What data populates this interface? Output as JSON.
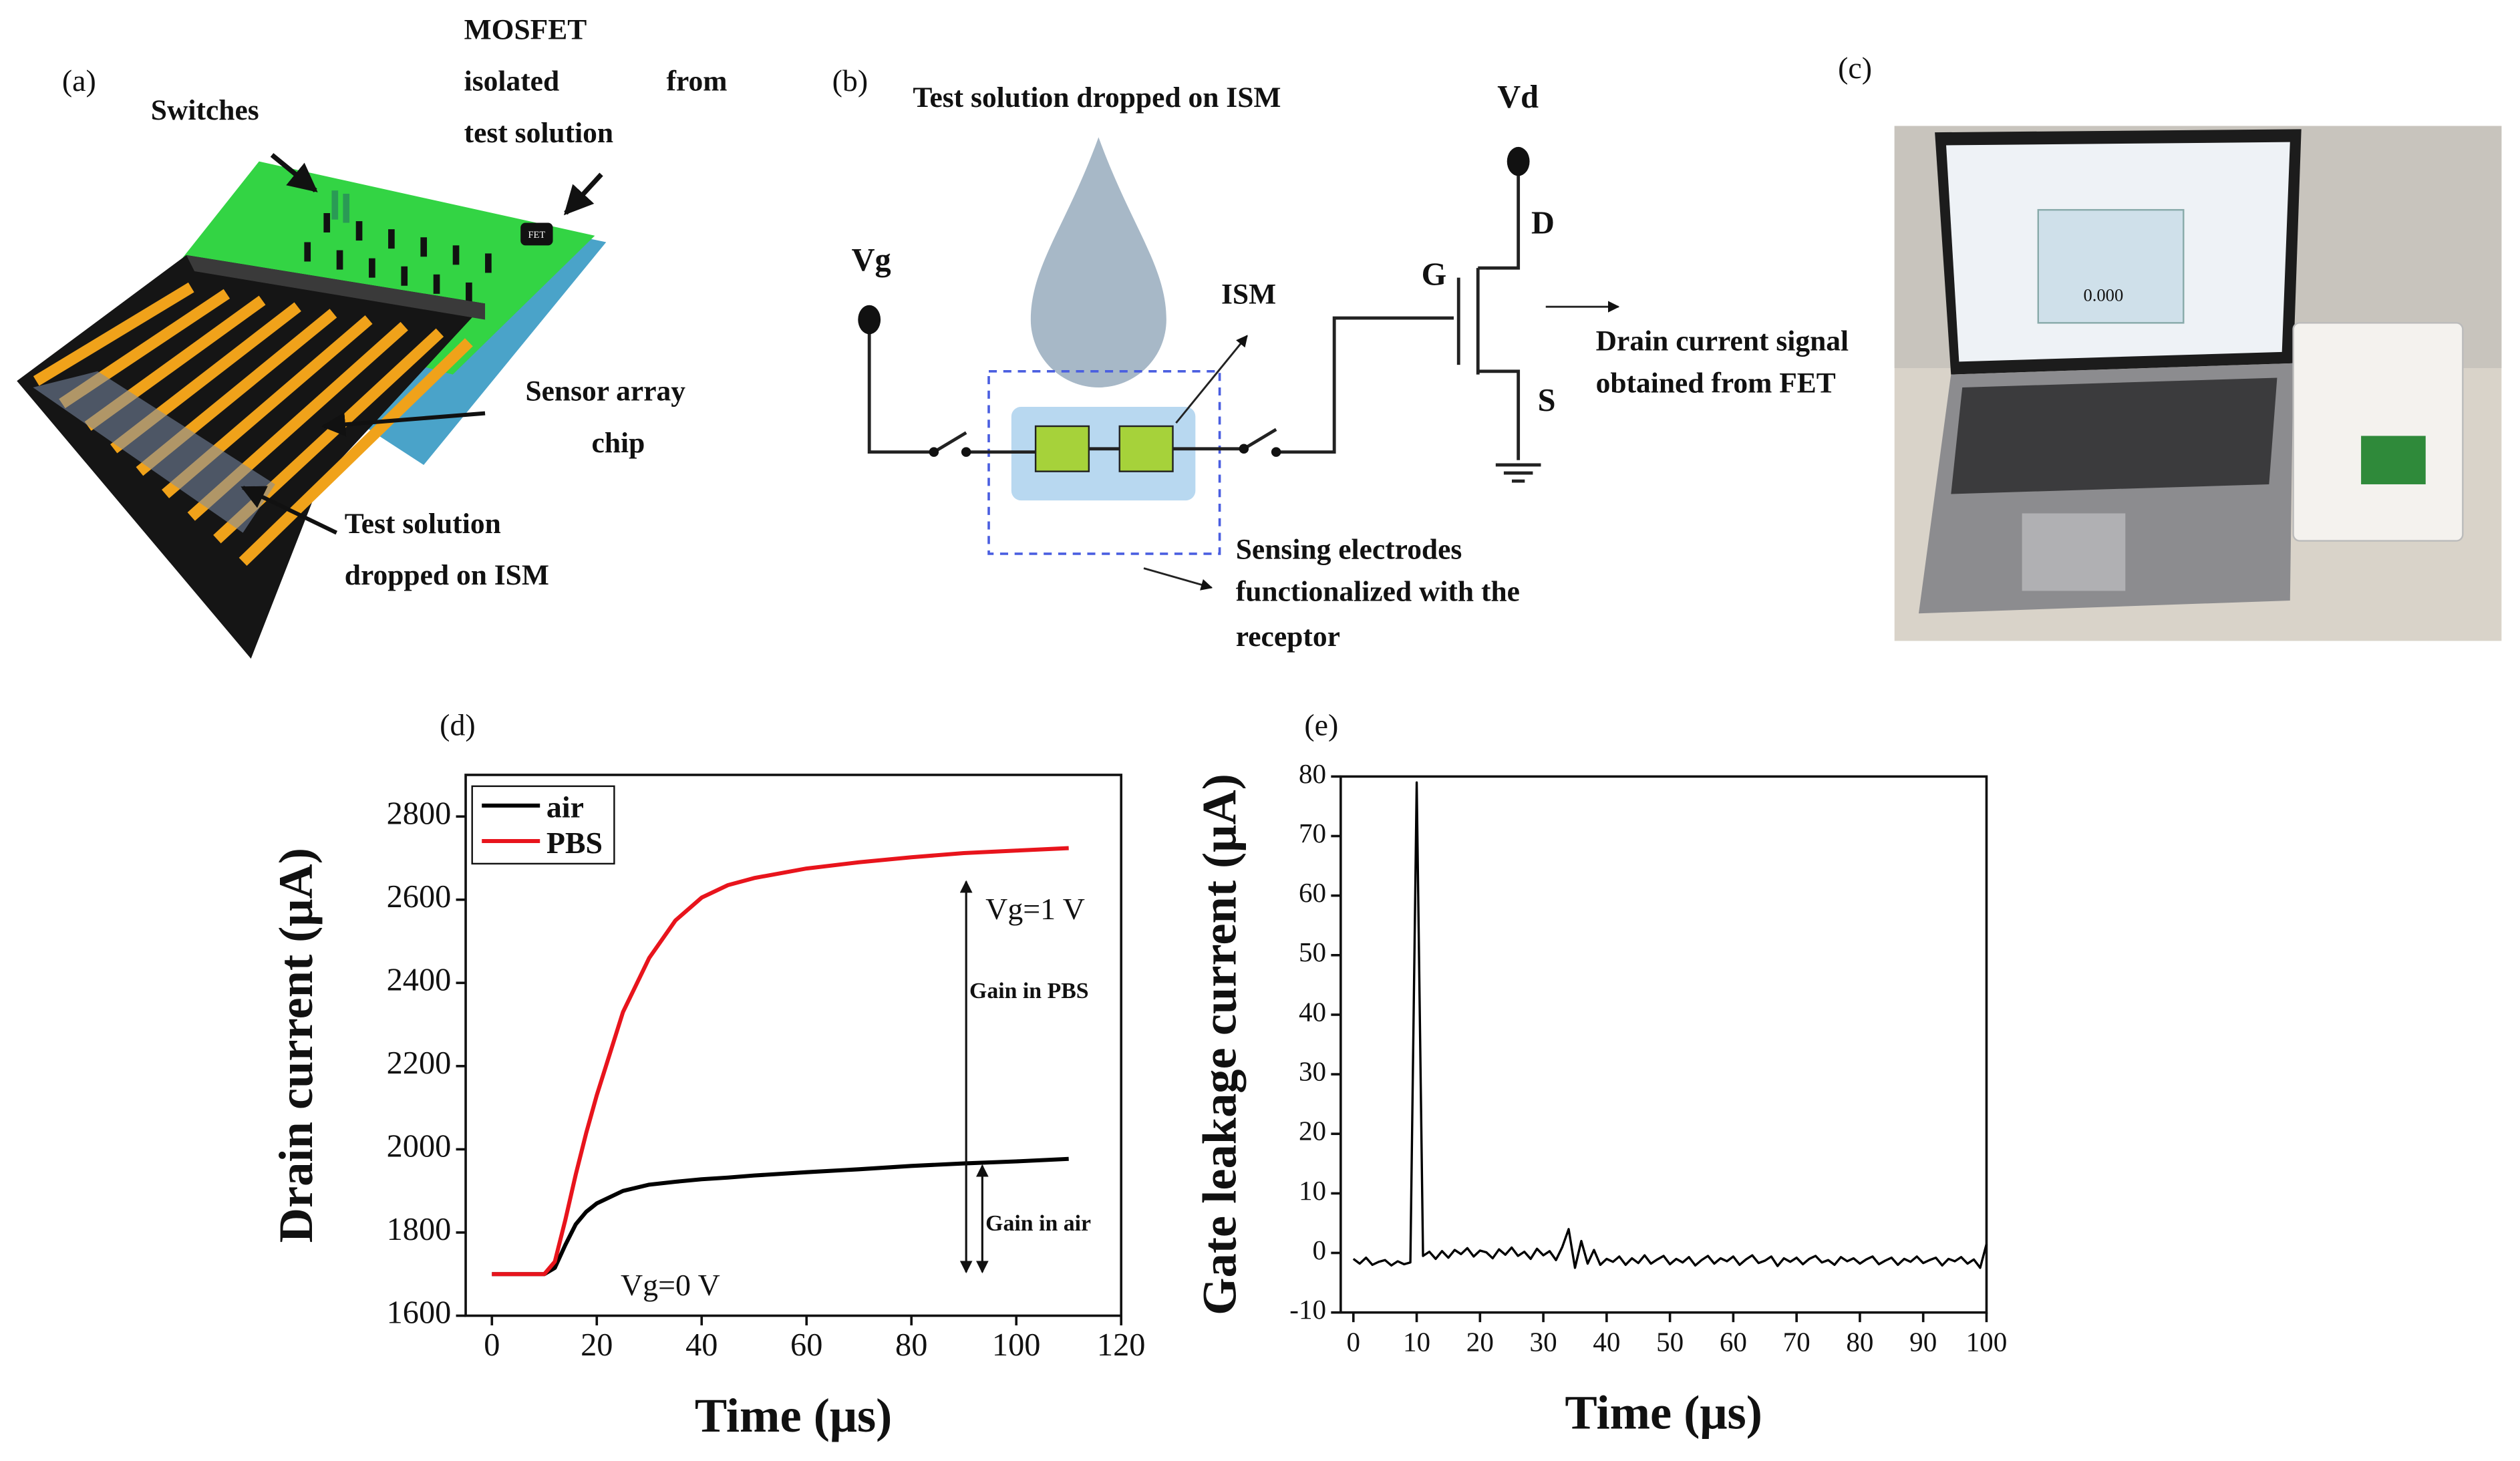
{
  "panels": {
    "a": {
      "label": "(a)",
      "switches": "Switches",
      "mosfet": [
        "MOSFET",
        "isolated",
        "from",
        "test solution"
      ],
      "fet": "FET",
      "sensor": [
        "Sensor array",
        "chip"
      ],
      "solution": [
        "Test solution",
        "dropped on ISM"
      ]
    },
    "b": {
      "label": "(b)",
      "title": "Test solution dropped on ISM",
      "vg": "Vg",
      "ism": "ISM",
      "vd": "Vd",
      "d": "D",
      "g": "G",
      "s": "S",
      "drain": [
        "Drain current signal",
        "obtained from FET"
      ],
      "sensing": [
        "Sensing electrodes",
        "functionalized with the",
        "receptor"
      ]
    },
    "c": {
      "label": "(c)",
      "screen": "0.000"
    }
  },
  "chart_data": [
    {
      "type": "line",
      "label": "(d)",
      "xlabel": "Time (μs)",
      "ylabel": "Drain current (μA)",
      "x": [
        0,
        5,
        10,
        12,
        14,
        16,
        18,
        20,
        25,
        30,
        35,
        40,
        45,
        50,
        60,
        70,
        80,
        90,
        100,
        110
      ],
      "series": [
        {
          "name": "air",
          "color": "#000000",
          "values": [
            1700,
            1700,
            1700,
            1715,
            1770,
            1820,
            1850,
            1870,
            1900,
            1915,
            1922,
            1928,
            1932,
            1937,
            1945,
            1952,
            1960,
            1966,
            1971,
            1977
          ]
        },
        {
          "name": "PBS",
          "color": "#e8141c",
          "values": [
            1700,
            1700,
            1700,
            1730,
            1830,
            1940,
            2040,
            2130,
            2330,
            2460,
            2550,
            2605,
            2635,
            2652,
            2675,
            2690,
            2702,
            2712,
            2718,
            2724
          ]
        }
      ],
      "annotations": [
        "Vg=1 V",
        "Gain in PBS",
        "Gain in air",
        "Vg=0 V"
      ],
      "xlim": [
        -5,
        120
      ],
      "xticks": [
        0,
        20,
        40,
        60,
        80,
        100,
        120
      ],
      "ylim": [
        1600,
        2900
      ],
      "yticks": [
        1600,
        1800,
        2000,
        2200,
        2400,
        2600,
        2800
      ],
      "legend": "upper left",
      "grid": false
    },
    {
      "type": "line",
      "label": "(e)",
      "xlabel": "Time (μs)",
      "ylabel": "Gate leakage current (μA)",
      "x": [
        0,
        1,
        2,
        3,
        4,
        5,
        6,
        7,
        8,
        9,
        10,
        11,
        12,
        13,
        14,
        15,
        16,
        17,
        18,
        19,
        20,
        21,
        22,
        23,
        24,
        25,
        26,
        27,
        28,
        29,
        30,
        31,
        32,
        33,
        34,
        35,
        36,
        37,
        38,
        39,
        40,
        41,
        42,
        43,
        44,
        45,
        46,
        47,
        48,
        49,
        50,
        51,
        52,
        53,
        54,
        55,
        56,
        57,
        58,
        59,
        60,
        61,
        62,
        63,
        64,
        65,
        66,
        67,
        68,
        69,
        70,
        71,
        72,
        73,
        74,
        75,
        76,
        77,
        78,
        79,
        80,
        81,
        82,
        83,
        84,
        85,
        86,
        87,
        88,
        89,
        90,
        91,
        92,
        93,
        94,
        95,
        96,
        97,
        98,
        99,
        100
      ],
      "series": [
        {
          "color": "#000000",
          "values": [
            -1,
            -1.8,
            -0.8,
            -2,
            -1.5,
            -1.2,
            -2.1,
            -1.4,
            -1.9,
            -1.6,
            79,
            -0.5,
            0.2,
            -1,
            0.3,
            -0.8,
            0.5,
            -0.2,
            0.8,
            -0.6,
            0.4,
            0.1,
            -0.9,
            0.6,
            -0.3,
            0.9,
            -0.5,
            0.2,
            -1,
            0.7,
            -0.4,
            0.3,
            -1.2,
            1,
            4,
            -2.5,
            2,
            -1.8,
            0.5,
            -2,
            -1,
            -1.5,
            -0.6,
            -2,
            -0.9,
            -1.7,
            -0.4,
            -1.8,
            -1.1,
            -0.5,
            -1.9,
            -1,
            -1.6,
            -0.7,
            -2.1,
            -1.2,
            -0.5,
            -1.8,
            -0.9,
            -1.4,
            -0.6,
            -2,
            -1.1,
            -0.4,
            -1.7,
            -1.3,
            -0.6,
            -2.2,
            -0.9,
            -1.5,
            -0.8,
            -1.9,
            -1,
            -0.5,
            -1.6,
            -1.2,
            -2,
            -0.7,
            -1.4,
            -0.9,
            -1.8,
            -1.1,
            -0.6,
            -1.9,
            -1.3,
            -0.8,
            -2,
            -1,
            -1.5,
            -0.6,
            -1.7,
            -1.2,
            -0.8,
            -2.1,
            -1,
            -1.4,
            -0.7,
            -1.8,
            -1.1,
            -2.5,
            1.5
          ]
        }
      ],
      "xlim": [
        -2,
        100
      ],
      "xticks": [
        0,
        10,
        20,
        30,
        40,
        50,
        60,
        70,
        80,
        90,
        100
      ],
      "ylim": [
        -10,
        80
      ],
      "yticks": [
        -10,
        0,
        10,
        20,
        30,
        40,
        50,
        60,
        70,
        80
      ],
      "grid": false
    }
  ]
}
